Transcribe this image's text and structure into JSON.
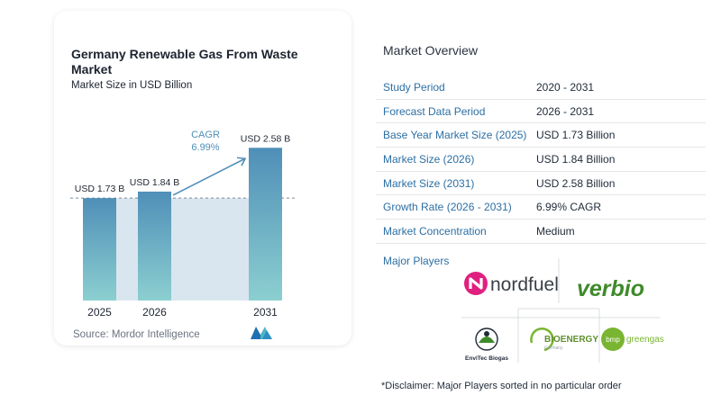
{
  "chart_data": {
    "type": "bar",
    "title": "Germany Renewable Gas From Waste Market",
    "subtitle": "Market Size in USD Billion",
    "categories": [
      "2025",
      "2026",
      "2031"
    ],
    "values": [
      1.73,
      1.84,
      2.58
    ],
    "data_labels": [
      "USD 1.73 B",
      "USD 1.84 B",
      "USD 2.58 B"
    ],
    "cagr_label": "CAGR",
    "cagr_value": "6.99%",
    "ylim": [
      0,
      2.9
    ],
    "colors": {
      "bar_top": "#4f8fb8",
      "bar_bottom": "#8ccfd0",
      "band": "#d9e6ef",
      "arrow": "#4f8fb8"
    }
  },
  "source": "Source: Mordor Intelligence",
  "overview": {
    "title": "Market Overview",
    "rows": [
      {
        "key": "Study Period",
        "value": "2020 - 2031"
      },
      {
        "key": "Forecast Data Period",
        "value": "2026 - 2031"
      },
      {
        "key": "Base Year Market Size (2025)",
        "value": "USD 1.73 Billion"
      },
      {
        "key": "Market Size (2026)",
        "value": "USD 1.84 Billion"
      },
      {
        "key": "Market Size (2031)",
        "value": "USD 2.58 Billion"
      },
      {
        "key": "Growth Rate (2026 - 2031)",
        "value": "6.99% CAGR"
      },
      {
        "key": "Market Concentration",
        "value": "Medium"
      }
    ]
  },
  "players": {
    "title": "Major Players",
    "logos": [
      {
        "name": "nordfuel",
        "text": "nordfuel",
        "color": "#3a3f47",
        "accent": "#e0207f"
      },
      {
        "name": "verbio",
        "text": "verbio",
        "color": "#3e8a2b"
      },
      {
        "name": "envitec",
        "text": "EnviTec Biogas",
        "color": "#1f2a37",
        "accent": "#3e8a2b"
      },
      {
        "name": "bioenergy",
        "text": "BIOENERGY",
        "subtext": "Germany",
        "color": "#5f8f2e"
      },
      {
        "name": "bmp",
        "text": "bmp",
        "text2": "greengas",
        "color": "#79b531"
      }
    ]
  },
  "disclaimer": "*Disclaimer: Major Players sorted in no particular order"
}
